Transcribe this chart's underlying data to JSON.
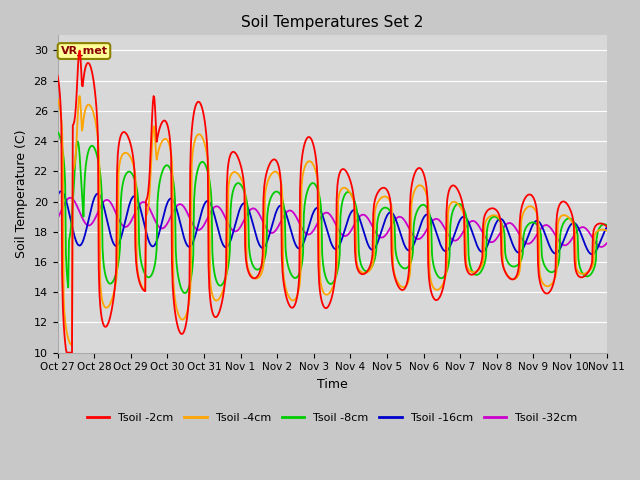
{
  "title": "Soil Temperatures Set 2",
  "xlabel": "Time",
  "ylabel": "Soil Temperature (C)",
  "ylim": [
    10,
    31
  ],
  "yticks": [
    10,
    12,
    14,
    16,
    18,
    20,
    22,
    24,
    26,
    28,
    30
  ],
  "colors": {
    "Tsoil -2cm": "#ff0000",
    "Tsoil -4cm": "#ffa500",
    "Tsoil -8cm": "#00cc00",
    "Tsoil -16cm": "#0000cc",
    "Tsoil -32cm": "#cc00cc"
  },
  "annotation_text": "VR_met",
  "annotation_bbox_facecolor": "#ffff99",
  "annotation_bbox_edgecolor": "#8B8000",
  "background_color": "#d8d8d8",
  "grid_color": "#ffffff",
  "tick_labels": [
    "Oct 27",
    "Oct 28",
    "Oct 29",
    "Oct 30",
    "Oct 31",
    "Nov 1",
    "Nov 2",
    "Nov 3",
    "Nov 4",
    "Nov 5",
    "Nov 6",
    "Nov 7",
    "Nov 8",
    "Nov 9",
    "Nov 10",
    "Nov 11"
  ]
}
